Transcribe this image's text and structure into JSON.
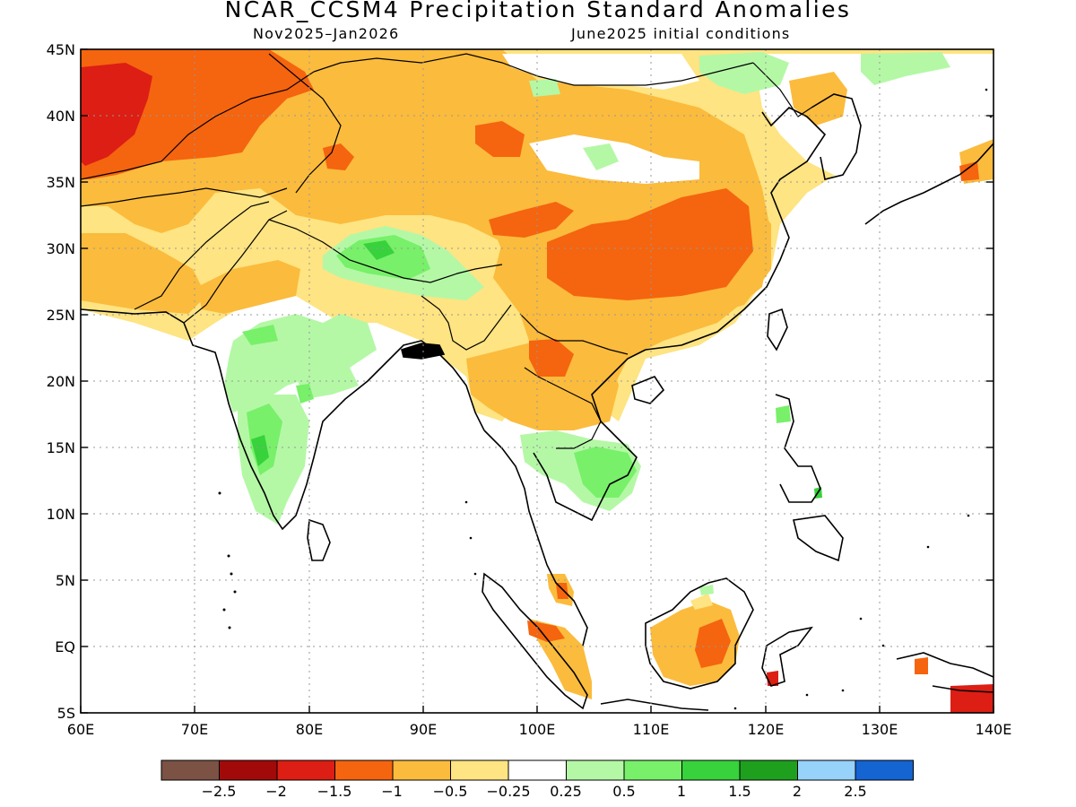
{
  "title": "NCAR_CCSM4 Precipitation Standard Anomalies",
  "subtitle_left": "Nov2025–Jan2026",
  "subtitle_right": "June2025 initial conditions",
  "map": {
    "lon_range": [
      60,
      140
    ],
    "lat_range": [
      -5,
      45
    ],
    "x_ticks": [
      "60E",
      "70E",
      "80E",
      "90E",
      "100E",
      "110E",
      "120E",
      "130E",
      "140E"
    ],
    "y_ticks": [
      "5S",
      "EQ",
      "5N",
      "10N",
      "15N",
      "20N",
      "25N",
      "30N",
      "35N",
      "40N",
      "45N"
    ],
    "grid": "dotted"
  },
  "colorbar": {
    "colors": [
      "#7b5244",
      "#a20a0a",
      "#dc1e14",
      "#f5640f",
      "#fbbb3c",
      "#fee482",
      "#ffffff",
      "#b4f8a6",
      "#78f06a",
      "#37d23c",
      "#1ea01e",
      "#96d2fa",
      "#1464d2"
    ],
    "labels": [
      "−2.5",
      "−2",
      "−1.5",
      "−1",
      "−0.5",
      "−0.25",
      "0.25",
      "0.5",
      "1",
      "1.5",
      "2",
      "2.5"
    ]
  }
}
